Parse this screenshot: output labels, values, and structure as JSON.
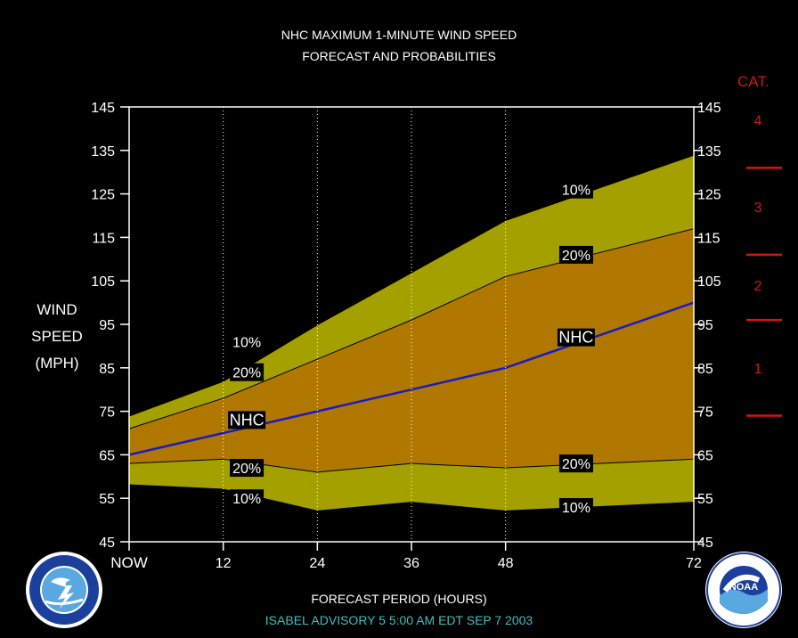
{
  "title_line1": "NHC MAXIMUM 1-MINUTE WIND SPEED",
  "title_line2": "FORECAST AND PROBABILITIES",
  "footer": "ISABEL   ADVISORY  5 5:00  AM  EDT  SEP  7  2003",
  "colors": {
    "background": "#000000",
    "outer_band": "#a3a000",
    "inner_band": "#b07800",
    "nhc_line": "#1a1ac8",
    "category_red": "#d11414",
    "footer_text": "#3fc0c0",
    "grid": "#ffffff"
  },
  "icons": [
    "nws-logo-icon",
    "noaa-logo-icon"
  ],
  "chart_data": {
    "type": "area",
    "title": "NHC MAXIMUM 1-MINUTE WIND SPEED FORECAST AND PROBABILITIES",
    "xlabel": "FORECAST PERIOD (HOURS)",
    "ylabel": [
      "WIND",
      "SPEED",
      "(MPH)"
    ],
    "ylim": [
      45,
      145
    ],
    "xlim": [
      0,
      72
    ],
    "yticks": [
      45,
      55,
      65,
      75,
      85,
      95,
      105,
      115,
      125,
      135,
      145
    ],
    "xticks": [
      {
        "value": 0,
        "label": "NOW"
      },
      {
        "value": 12,
        "label": "12"
      },
      {
        "value": 24,
        "label": "24"
      },
      {
        "value": 36,
        "label": "36"
      },
      {
        "value": 48,
        "label": "48"
      },
      {
        "value": 72,
        "label": "72"
      }
    ],
    "x": [
      0,
      12,
      24,
      36,
      48,
      72
    ],
    "series": [
      {
        "name": "10%",
        "values": [
          74,
          82,
          95,
          107,
          119,
          134
        ]
      },
      {
        "name": "20%",
        "values": [
          71,
          78,
          87,
          96,
          106,
          117
        ]
      },
      {
        "name": "NHC",
        "values": [
          65,
          70,
          75,
          80,
          85,
          100
        ]
      },
      {
        "name": "20%",
        "values": [
          63,
          64,
          61,
          63,
          62,
          64
        ]
      },
      {
        "name": "10%",
        "values": [
          58,
          57,
          52,
          54,
          52,
          54
        ]
      }
    ],
    "series_labels": [
      {
        "text": "10%",
        "x": 15,
        "y": 91
      },
      {
        "text": "20%",
        "x": 15,
        "y": 84
      },
      {
        "text": "NHC",
        "x": 15,
        "y": 73
      },
      {
        "text": "20%",
        "x": 15,
        "y": 62
      },
      {
        "text": "10%",
        "x": 15,
        "y": 55
      },
      {
        "text": "10%",
        "x": 57,
        "y": 126
      },
      {
        "text": "20%",
        "x": 57,
        "y": 111
      },
      {
        "text": "NHC",
        "x": 57,
        "y": 92
      },
      {
        "text": "20%",
        "x": 57,
        "y": 63
      },
      {
        "text": "10%",
        "x": 57,
        "y": 53
      }
    ],
    "categories": {
      "title": "CAT.",
      "labels": [
        {
          "text": "4",
          "y": 142
        },
        {
          "text": "3",
          "y": 122
        },
        {
          "text": "2",
          "y": 104
        },
        {
          "text": "1",
          "y": 85
        }
      ],
      "thresholds": [
        131,
        111,
        96,
        74
      ]
    },
    "grid": "dotted vertical at 12, 24, 36, 48"
  }
}
